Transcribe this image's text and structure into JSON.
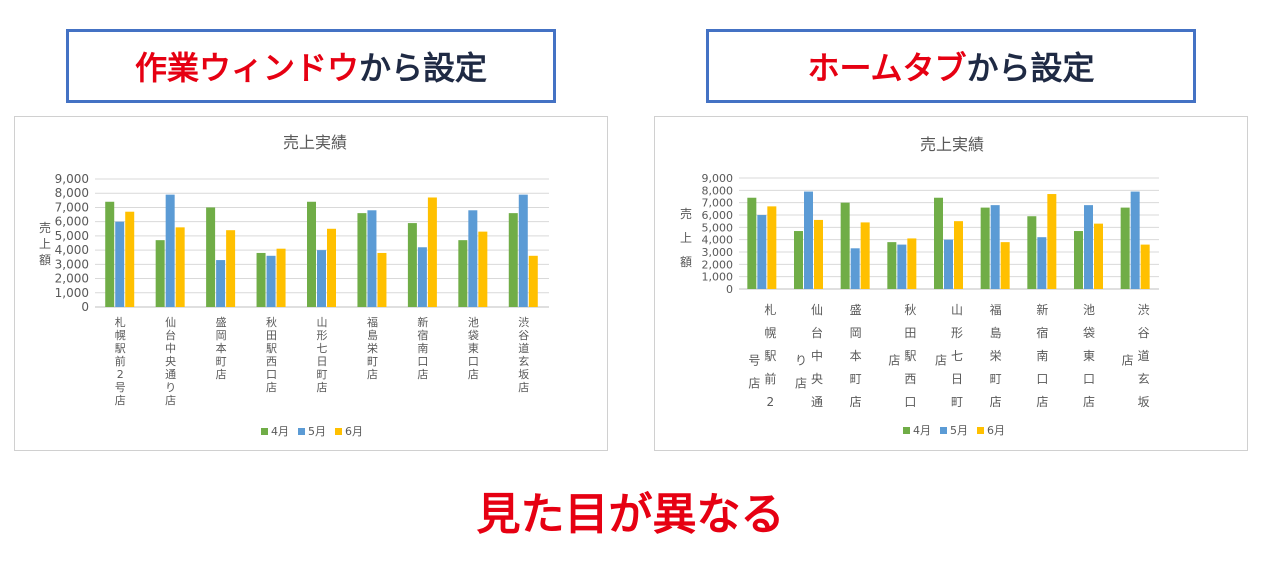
{
  "headings": {
    "left": {
      "red": "作業ウィンドウ",
      "navy": "から設定"
    },
    "right": {
      "red": "ホームタブ",
      "navy": "から設定"
    }
  },
  "caption": "見た目が異なる",
  "colors": {
    "april": "#70ad47",
    "may": "#5b9bd5",
    "june": "#ffc000",
    "red": "#e60012",
    "border": "#4472c4"
  },
  "chart_data": [
    {
      "type": "bar",
      "title": "売上実績",
      "ylabel": "売上額",
      "ylim": [
        0,
        9000
      ],
      "yticks": [
        "0",
        "1,000",
        "2,000",
        "3,000",
        "4,000",
        "5,000",
        "6,000",
        "7,000",
        "8,000",
        "9,000"
      ],
      "categories": [
        "札幌駅前2号店",
        "仙台中央通り店",
        "盛岡本町店",
        "秋田駅西口店",
        "山形七日町店",
        "福島栄町店",
        "新宿南口店",
        "池袋東口店",
        "渋谷道玄坂店"
      ],
      "series": [
        {
          "name": "4月",
          "values": [
            7400,
            4700,
            7000,
            3800,
            7400,
            6600,
            5900,
            4700,
            6600
          ]
        },
        {
          "name": "5月",
          "values": [
            6000,
            7900,
            3300,
            3600,
            4000,
            6800,
            4200,
            6800,
            7900
          ]
        },
        {
          "name": "6月",
          "values": [
            6700,
            5600,
            5400,
            4100,
            5500,
            3800,
            7700,
            5300,
            3600
          ]
        }
      ],
      "legend": "bottom",
      "grid": true
    },
    {
      "type": "bar",
      "title": "売上実績",
      "ylabel": "売上額",
      "ylim": [
        0,
        9000
      ],
      "yticks": [
        "0",
        "1,000",
        "2,000",
        "3,000",
        "4,000",
        "5,000",
        "6,000",
        "7,000",
        "8,000",
        "9,000"
      ],
      "categories": [
        "札幌駅前2号店",
        "仙台中央通り店",
        "盛岡本町店",
        "秋田駅西口店",
        "山形七日町店",
        "福島栄町店",
        "新宿南口店",
        "池袋東口店",
        "渋谷道玄坂店"
      ],
      "category_label_lines": [
        [
          "札幌駅前2",
          "号店"
        ],
        [
          "仙台中央通",
          "り店"
        ],
        [
          "盛岡本町店"
        ],
        [
          "秋田駅西口",
          "店"
        ],
        [
          "山形七日町",
          "店"
        ],
        [
          "福島栄町店"
        ],
        [
          "新宿南口店"
        ],
        [
          "池袋東口店"
        ],
        [
          "渋谷道玄坂",
          "店"
        ]
      ],
      "series": [
        {
          "name": "4月",
          "values": [
            7400,
            4700,
            7000,
            3800,
            7400,
            6600,
            5900,
            4700,
            6600
          ]
        },
        {
          "name": "5月",
          "values": [
            6000,
            7900,
            3300,
            3600,
            4000,
            6800,
            4200,
            6800,
            7900
          ]
        },
        {
          "name": "6月",
          "values": [
            6700,
            5600,
            5400,
            4100,
            5500,
            3800,
            7700,
            5300,
            3600
          ]
        }
      ],
      "legend": "bottom",
      "grid": true
    }
  ]
}
